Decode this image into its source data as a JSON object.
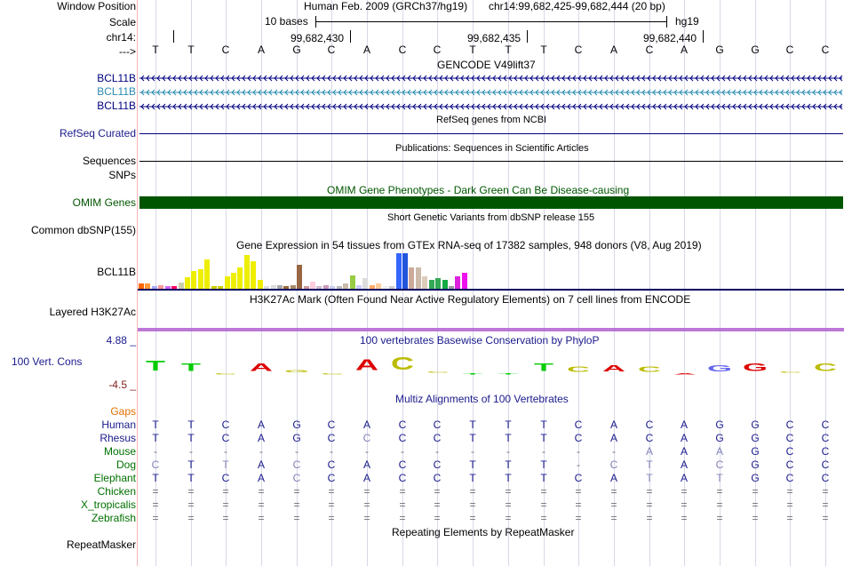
{
  "header": {
    "window_position_label": "Window Position",
    "assembly_text": "Human Feb. 2009 (GRCh37/hg19)",
    "position_text": "chr14:99,682,425-99,682,444 (20 bp)",
    "scale_label": "Scale",
    "scale_text": "10 bases",
    "scale_db": "hg19",
    "chrom_label": "chr14:",
    "ticks": [
      "99,682,430",
      "99,682,435",
      "99,682,440"
    ],
    "strand_label": "--->"
  },
  "sequence": [
    "T",
    "T",
    "C",
    "A",
    "G",
    "C",
    "A",
    "C",
    "C",
    "T",
    "T",
    "T",
    "C",
    "A",
    "C",
    "A",
    "G",
    "G",
    "C",
    "C"
  ],
  "tracks": {
    "gencode_title": "GENCODE V49lift37",
    "gencode_genes": [
      {
        "name": "BCL11B",
        "color": "#000080"
      },
      {
        "name": "BCL11B",
        "color": "#2a8ab0"
      },
      {
        "name": "BCL11B",
        "color": "#000080"
      }
    ],
    "refseq_title": "RefSeq genes from NCBI",
    "refseq_label": "RefSeq Curated",
    "pubs_title": "Publications: Sequences in Scientific Articles",
    "pubs_label": "Sequences",
    "snps_label": "SNPs",
    "omim_title": "OMIM Gene Phenotypes - Dark Green Can Be Disease-causing",
    "omim_label": "OMIM Genes",
    "dbsnp_title": "Short Genetic Variants from dbSNP release 155",
    "dbsnp_label": "Common dbSNP(155)",
    "gtex_title": "Gene Expression in 54 tissues from GTEx RNA-seq of 17382 samples, 948 donors (V8, Aug 2019)",
    "gtex_label": "BCL11B",
    "h3k27ac_title": "H3K27Ac Mark (Often Found Near Active Regulatory Elements) on 7 cell lines from ENCODE",
    "h3k27ac_label": "Layered H3K27Ac",
    "phylop_title": "100 vertebrates Basewise Conservation by PhyloP",
    "phylop_label": "100 Vert. Cons",
    "phylop_max": "4.88 _",
    "phylop_min": "-4.5 _",
    "multiz_title": "Multiz Alignments of 100 Vertebrates",
    "gaps_label": "Gaps",
    "repeat_title": "Repeating Elements by RepeatMasker",
    "repeat_label": "RepeatMasker"
  },
  "alignment": [
    {
      "species": "Human",
      "bases": [
        "T",
        "T",
        "C",
        "A",
        "G",
        "C",
        "A",
        "C",
        "C",
        "T",
        "T",
        "T",
        "C",
        "A",
        "C",
        "A",
        "G",
        "G",
        "C",
        "C"
      ],
      "faint": []
    },
    {
      "species": "Rhesus",
      "bases": [
        "T",
        "T",
        "C",
        "A",
        "G",
        "C",
        "C",
        "C",
        "C",
        "T",
        "T",
        "T",
        "C",
        "A",
        "C",
        "A",
        "G",
        "G",
        "C",
        "C"
      ],
      "faint": [
        6
      ]
    },
    {
      "species": "Mouse",
      "bases": [
        "-",
        "-",
        "-",
        "-",
        "-",
        "-",
        "-",
        "-",
        "-",
        "-",
        "-",
        "-",
        "-",
        "-",
        "A",
        "A",
        "A",
        "G",
        "C",
        "C"
      ],
      "faint": [
        14,
        16
      ]
    },
    {
      "species": "Dog",
      "bases": [
        "C",
        "T",
        "T",
        "A",
        "C",
        "C",
        "A",
        "C",
        "C",
        "T",
        "T",
        "T",
        "-",
        "C",
        "T",
        "A",
        "C",
        "G",
        "C",
        "C"
      ],
      "faint": [
        0,
        2,
        4,
        13,
        14,
        16
      ]
    },
    {
      "species": "Elephant",
      "bases": [
        "T",
        "T",
        "C",
        "A",
        "C",
        "C",
        "A",
        "C",
        "C",
        "T",
        "T",
        "T",
        "C",
        "A",
        "T",
        "A",
        "T",
        "G",
        "C",
        "C"
      ],
      "faint": [
        4,
        14,
        16
      ]
    },
    {
      "species": "Chicken",
      "bases": [
        "=",
        "=",
        "=",
        "=",
        "=",
        "=",
        "=",
        "=",
        "=",
        "=",
        "=",
        "=",
        "=",
        "=",
        "=",
        "=",
        "=",
        "=",
        "=",
        "="
      ],
      "faint": []
    },
    {
      "species": "X_tropicalis",
      "bases": [
        "=",
        "=",
        "=",
        "=",
        "=",
        "=",
        "=",
        "=",
        "=",
        "=",
        "=",
        "=",
        "=",
        "=",
        "=",
        "=",
        "=",
        "=",
        "=",
        "="
      ],
      "faint": []
    },
    {
      "species": "Zebrafish",
      "bases": [
        "=",
        "=",
        "=",
        "=",
        "=",
        "=",
        "=",
        "=",
        "=",
        "=",
        "=",
        "=",
        "=",
        "=",
        "=",
        "=",
        "=",
        "=",
        "=",
        "="
      ],
      "faint": []
    }
  ],
  "gtex_bars": [
    {
      "h": 6,
      "c": "#ff6600"
    },
    {
      "h": 6,
      "c": "#ff9933"
    },
    {
      "h": 3,
      "c": "#aaaaff"
    },
    {
      "h": 4,
      "c": "#ff9999"
    },
    {
      "h": 3,
      "c": "#cc66ff"
    },
    {
      "h": 3,
      "c": "#ff0066"
    },
    {
      "h": 7,
      "c": "#ccccaa"
    },
    {
      "h": 13,
      "c": "#eeee00"
    },
    {
      "h": 20,
      "c": "#eeee00"
    },
    {
      "h": 22,
      "c": "#eeee00"
    },
    {
      "h": 33,
      "c": "#eeee00"
    },
    {
      "h": 3,
      "c": "#cccc00"
    },
    {
      "h": 3,
      "c": "#cccc00"
    },
    {
      "h": 14,
      "c": "#eeee00"
    },
    {
      "h": 18,
      "c": "#eeee00"
    },
    {
      "h": 24,
      "c": "#eeee00"
    },
    {
      "h": 38,
      "c": "#eeee00"
    },
    {
      "h": 31,
      "c": "#eeee00"
    },
    {
      "h": 10,
      "c": "#eeee00"
    },
    {
      "h": 3,
      "c": "#dddddd"
    },
    {
      "h": 4,
      "c": "#dddddd"
    },
    {
      "h": 4,
      "c": "#aaaaaa"
    },
    {
      "h": 3,
      "c": "#996633"
    },
    {
      "h": 4,
      "c": "#aa8866"
    },
    {
      "h": 27,
      "c": "#996644"
    },
    {
      "h": 3,
      "c": "#cc9999"
    },
    {
      "h": 8,
      "c": "#ffccdd"
    },
    {
      "h": 3,
      "c": "#ccbbcc"
    },
    {
      "h": 4,
      "c": "#cc99bb"
    },
    {
      "h": 3,
      "c": "#ccccee"
    },
    {
      "h": 3,
      "c": "#bbbbbb"
    },
    {
      "h": 6,
      "c": "#ccbbaa"
    },
    {
      "h": 15,
      "c": "#99cc44"
    },
    {
      "h": 4,
      "c": "#ccccff"
    },
    {
      "h": 12,
      "c": "#dddddd"
    },
    {
      "h": 4,
      "c": "#ffaa66"
    },
    {
      "h": 6,
      "c": "#ffcc99"
    },
    {
      "h": 3,
      "c": "#eeeeee"
    },
    {
      "h": 3,
      "c": "#cccccc"
    },
    {
      "h": 40,
      "c": "#3366ff"
    },
    {
      "h": 40,
      "c": "#2255dd"
    },
    {
      "h": 24,
      "c": "#ccaa99"
    },
    {
      "h": 24,
      "c": "#ccbbaa"
    },
    {
      "h": 14,
      "c": "#ddccbb"
    },
    {
      "h": 10,
      "c": "#33aa55"
    },
    {
      "h": 12,
      "c": "#33aa55"
    },
    {
      "h": 10,
      "c": "#11aa44"
    },
    {
      "h": 3,
      "c": "#999999"
    },
    {
      "h": 14,
      "c": "#dd22dd"
    },
    {
      "h": 18,
      "c": "#ee11ee"
    }
  ],
  "phylop_logos": [
    {
      "base": "T",
      "dir": "up",
      "h": 8,
      "color": "#00cc00"
    },
    {
      "base": "T",
      "dir": "up",
      "h": 6,
      "color": "#00cc00"
    },
    {
      "base": "C",
      "dir": "down",
      "h": 1,
      "color": "#bbbb00"
    },
    {
      "base": "A",
      "dir": "up",
      "h": 6,
      "color": "#dd0000"
    },
    {
      "base": "G",
      "dir": "up",
      "h": 2,
      "color": "#bbbb00"
    },
    {
      "base": "C",
      "dir": "down",
      "h": 1,
      "color": "#bbbb00"
    },
    {
      "base": "A",
      "dir": "up",
      "h": 9,
      "color": "#dd0000"
    },
    {
      "base": "C",
      "dir": "up",
      "h": 10,
      "color": "#bbbb00"
    },
    {
      "base": "C",
      "dir": "up",
      "h": 1,
      "color": "#bbbb00"
    },
    {
      "base": "T",
      "dir": "down",
      "h": 1,
      "color": "#00cc00"
    },
    {
      "base": "T",
      "dir": "down",
      "h": 1,
      "color": "#00cc00"
    },
    {
      "base": "T",
      "dir": "up",
      "h": 6,
      "color": "#00cc00"
    },
    {
      "base": "C",
      "dir": "up",
      "h": 4,
      "color": "#bbbb00"
    },
    {
      "base": "A",
      "dir": "up",
      "h": 5,
      "color": "#dd0000"
    },
    {
      "base": "C",
      "dir": "up",
      "h": 4,
      "color": "#bbbb00"
    },
    {
      "base": "A",
      "dir": "down",
      "h": 1,
      "color": "#dd0000"
    },
    {
      "base": "G",
      "dir": "up",
      "h": 5,
      "color": "#6666ee"
    },
    {
      "base": "G",
      "dir": "up",
      "h": 6,
      "color": "#dd0000"
    },
    {
      "base": "C",
      "dir": "up",
      "h": 1,
      "color": "#bbbb00"
    },
    {
      "base": "C",
      "dir": "up",
      "h": 6,
      "color": "#bbbb00"
    }
  ],
  "colors": {
    "label_blue": "#1a1a8c",
    "omim_green": "#005500",
    "gaps_orange": "#e07000",
    "species_green": "#007000",
    "h3k27ac": "#b060d0"
  }
}
